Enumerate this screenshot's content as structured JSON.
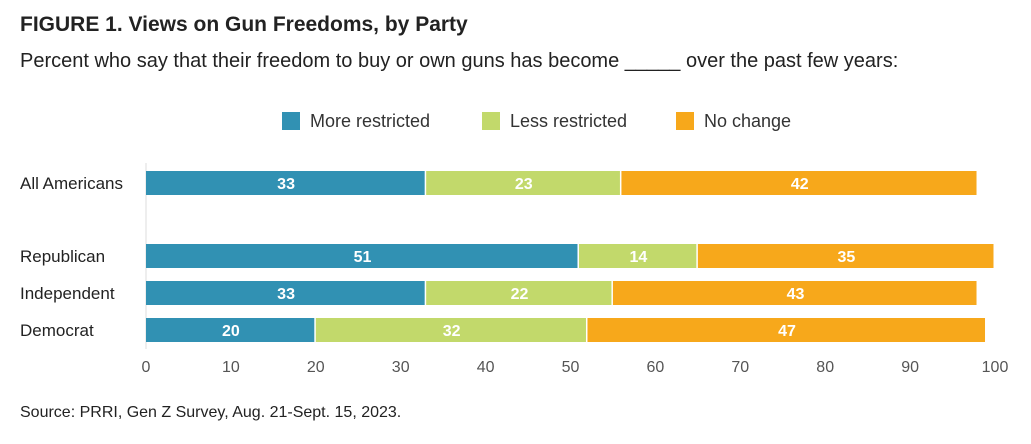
{
  "title": "FIGURE 1. Views on Gun Freedoms, by Party",
  "subtitle": "Percent who say that their freedom to buy or own guns has become _____ over the past few years:",
  "source": "Source: PRRI, Gen Z Survey, Aug. 21-Sept. 15, 2023.",
  "chart_data": {
    "type": "bar",
    "orientation": "horizontal",
    "stacked": true,
    "title": "FIGURE 1. Views on Gun Freedoms, by Party",
    "categories": [
      "All Americans",
      "Republican",
      "Independent",
      "Democrat"
    ],
    "series": [
      {
        "name": "More restricted",
        "color": "#3191b3",
        "values": [
          33,
          51,
          33,
          20
        ]
      },
      {
        "name": "Less restricted",
        "color": "#c2d96b",
        "values": [
          23,
          14,
          22,
          32
        ]
      },
      {
        "name": "No change",
        "color": "#f7a81b",
        "values": [
          42,
          35,
          43,
          47
        ]
      }
    ],
    "xlim": [
      0,
      100
    ],
    "xticks": [
      0,
      10,
      20,
      30,
      40,
      50,
      60,
      70,
      80,
      90,
      100
    ],
    "legend": "top-center",
    "grid": false
  }
}
